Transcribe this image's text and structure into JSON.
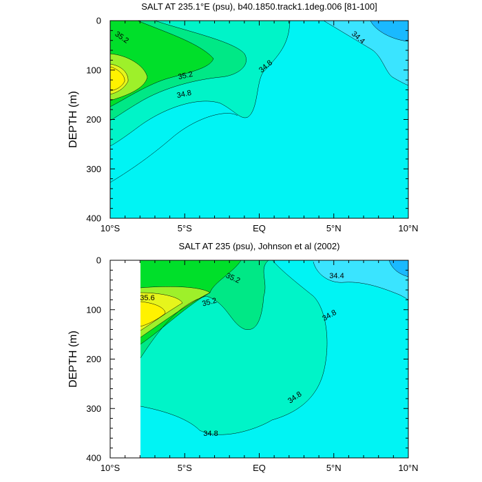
{
  "colors": {
    "lt_34_4": "#1ab9ff",
    "c_34_4_34_6": "#3ae4ff",
    "c_34_6_34_8": "#00f4f4",
    "c_34_8_35_0": "#00f4c8",
    "c_35_0_35_2": "#00e886",
    "c_35_2_35_4": "#00df2a",
    "c_35_4_35_6": "#9ef02a",
    "c_35_6_35_8": "#e6f51c",
    "gt_35_8": "#fff200"
  },
  "chart_data": [
    {
      "type": "filled-contour",
      "title": "SALT AT 235.1°E (psu), b40.1850.track1.1deg.006 [81-100]",
      "ylabel": "DEPTH (m)",
      "xlabel": "",
      "xlim": [
        -10,
        10
      ],
      "ylim": [
        400,
        0
      ],
      "y_reversed": true,
      "x_ticks": [
        "10°S",
        "5°S",
        "EQ",
        "5°N",
        "10°N"
      ],
      "y_ticks": [
        "0",
        "100",
        "200",
        "300",
        "400"
      ],
      "contour_levels": [
        34.4,
        34.6,
        34.8,
        35.0,
        35.2,
        35.4,
        35.6,
        35.8
      ],
      "contour_labels": [
        "35.2",
        "35.2",
        "34.8",
        "34.8",
        "34.4"
      ],
      "data_x_start": -10,
      "max_value_approx": 35.8,
      "max_location": {
        "lon": -9.6,
        "depth": 120
      }
    },
    {
      "type": "filled-contour",
      "title": "SALT AT 235 (psu), Johnson et al (2002)",
      "ylabel": "DEPTH (m)",
      "xlabel": "",
      "xlim": [
        -10,
        10
      ],
      "ylim": [
        400,
        0
      ],
      "y_reversed": true,
      "x_ticks": [
        "10°S",
        "5°S",
        "EQ",
        "5°N",
        "10°N"
      ],
      "y_ticks": [
        "0",
        "100",
        "200",
        "300",
        "400"
      ],
      "contour_levels": [
        34.4,
        34.6,
        34.8,
        35.0,
        35.2,
        35.4,
        35.6,
        35.8
      ],
      "contour_labels": [
        "35.2",
        "35.6",
        "35.2",
        "34.4",
        "34.8",
        "34.8",
        "34.8"
      ],
      "data_x_start": -8,
      "max_value_approx": 35.9,
      "max_location": {
        "lon": -7.8,
        "depth": 105
      }
    }
  ]
}
